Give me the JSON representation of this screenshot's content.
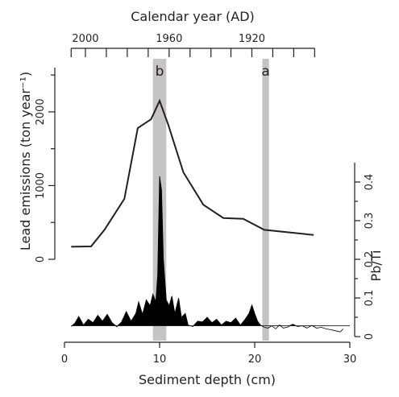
{
  "chart_data": {
    "type": "line",
    "xlabel": "Sediment depth (cm)",
    "x_ticks": [
      0,
      10,
      20,
      30
    ],
    "xlim": [
      0,
      30
    ],
    "top_axis": {
      "label": "Calendar year (AD)",
      "tick_labels": [
        {
          "label": "2000",
          "depth": 2.2
        },
        {
          "label": "1960",
          "depth": 11.0
        },
        {
          "label": "1920",
          "depth": 19.7
        }
      ],
      "minor_tick_depths": [
        0.7,
        2.2,
        4.4,
        6.6,
        8.8,
        11.0,
        13.2,
        15.4,
        17.5,
        19.7,
        21.9,
        24.1,
        26.3
      ]
    },
    "left_axis": {
      "label": "Lead emissions (ton year⁻¹)",
      "ticks": [
        0,
        1000,
        2000
      ],
      "ylim": [
        0,
        2600
      ]
    },
    "right_axis": {
      "label": "Pb/Ti",
      "ticks": [
        0,
        0.1,
        0.2,
        0.3,
        0.4
      ],
      "ylim": [
        0,
        0.45
      ],
      "baseline": 0.028
    },
    "annotations": [
      {
        "label": "b",
        "depth_from": 9.3,
        "depth_to": 10.7,
        "color": "#c4c4c4"
      },
      {
        "label": "a",
        "depth_from": 20.8,
        "depth_to": 21.5,
        "color": "#c4c4c4"
      }
    ],
    "series": [
      {
        "axis": "left",
        "x": [
          0.7,
          2.8,
          4.2,
          6.3,
          7.7,
          9.1,
          10.0,
          10.9,
          12.5,
          14.6,
          16.7,
          18.8,
          21.0,
          26.2
        ],
        "y": [
          170,
          175,
          400,
          820,
          1780,
          1900,
          2150,
          1830,
          1180,
          740,
          560,
          550,
          400,
          330
        ]
      },
      {
        "axis": "right",
        "x": [
          0.7,
          1.1,
          1.5,
          2.0,
          2.5,
          3.0,
          3.5,
          4.0,
          4.5,
          5.0,
          5.5,
          6.0,
          6.5,
          7.0,
          7.5,
          7.8,
          8.2,
          8.6,
          9.0,
          9.3,
          9.6,
          9.8,
          10.0,
          10.2,
          10.4,
          10.7,
          11.0,
          11.3,
          11.6,
          12.0,
          12.3,
          12.7,
          13.0,
          13.5,
          14.0,
          14.5,
          15.0,
          15.5,
          16.0,
          16.5,
          17.0,
          17.5,
          18.0,
          18.5,
          19.0,
          19.4,
          19.7,
          20.0,
          20.3,
          20.6,
          21.0,
          21.4,
          21.8,
          22.2,
          22.6,
          23.0,
          23.5,
          24.0,
          24.5,
          25.0,
          25.5,
          26.0,
          26.5,
          27.0,
          27.5,
          28.0,
          28.5,
          29.0,
          29.3
        ],
        "y": [
          0.026,
          0.035,
          0.052,
          0.03,
          0.045,
          0.036,
          0.055,
          0.04,
          0.058,
          0.036,
          0.025,
          0.038,
          0.065,
          0.04,
          0.06,
          0.09,
          0.058,
          0.095,
          0.08,
          0.11,
          0.09,
          0.16,
          0.415,
          0.38,
          0.2,
          0.095,
          0.08,
          0.105,
          0.06,
          0.1,
          0.05,
          0.06,
          0.03,
          0.026,
          0.04,
          0.038,
          0.05,
          0.036,
          0.045,
          0.03,
          0.04,
          0.036,
          0.048,
          0.03,
          0.045,
          0.06,
          0.082,
          0.06,
          0.04,
          0.03,
          0.024,
          0.022,
          0.028,
          0.02,
          0.03,
          0.022,
          0.025,
          0.032,
          0.026,
          0.028,
          0.022,
          0.029,
          0.022,
          0.024,
          0.02,
          0.018,
          0.015,
          0.012,
          0.02
        ]
      }
    ]
  }
}
